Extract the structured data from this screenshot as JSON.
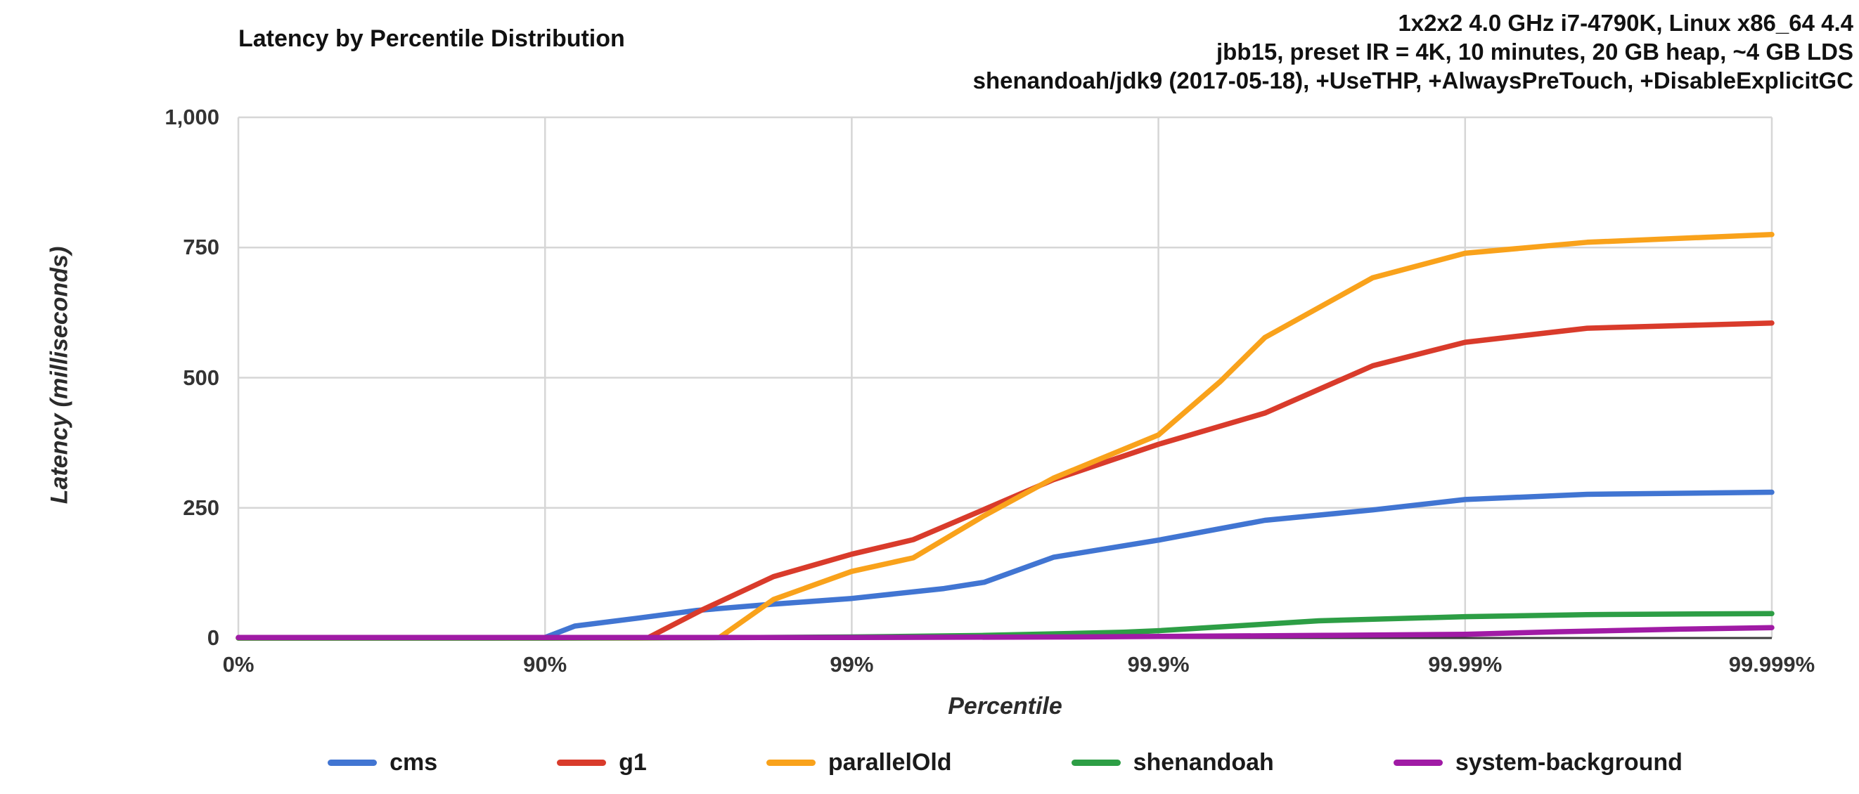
{
  "title": "Latency by Percentile Distribution",
  "notes": [
    "1x2x2 4.0 GHz i7-4790K, Linux x86_64 4.4",
    "jbb15, preset IR = 4K, 10 minutes, 20 GB heap, ~4 GB LDS",
    "shenandoah/jdk9 (2017-05-18), +UseTHP, +AlwaysPreTouch, +DisableExplicitGC"
  ],
  "chart_data": {
    "type": "line",
    "title": "Latency by Percentile Distribution",
    "xlabel": "Percentile",
    "ylabel": "Latency (milliseconds)",
    "x_scale": "hdr-percentile-log, position = log10(100/(100-p))",
    "x_ticks": [
      "0%",
      "90%",
      "99%",
      "99.9%",
      "99.99%",
      "99.999%"
    ],
    "y_ticks": [
      {
        "value": 0,
        "label": "0"
      },
      {
        "value": 250,
        "label": "250"
      },
      {
        "value": 500,
        "label": "500"
      },
      {
        "value": 750,
        "label": "750"
      },
      {
        "value": 1000,
        "label": "1,000"
      }
    ],
    "ylim": [
      0,
      1000
    ],
    "grid": true,
    "legend_position": "bottom",
    "colors": {
      "grid": "#d6d6d6",
      "axis": "#3c3c3c",
      "text": "#333333"
    },
    "series": [
      {
        "name": "cms",
        "color": "#4175D2",
        "points": [
          [
            0,
            0
          ],
          [
            50,
            0
          ],
          [
            85,
            0
          ],
          [
            90,
            1
          ],
          [
            92,
            23
          ],
          [
            95,
            38
          ],
          [
            96.8,
            53
          ],
          [
            98.2,
            65
          ],
          [
            99,
            76
          ],
          [
            99.5,
            95
          ],
          [
            99.63,
            107
          ],
          [
            99.78,
            155
          ],
          [
            99.9,
            188
          ],
          [
            99.955,
            226
          ],
          [
            99.98,
            246
          ],
          [
            99.99,
            266
          ],
          [
            99.996,
            276
          ],
          [
            99.999,
            280
          ]
        ]
      },
      {
        "name": "g1",
        "color": "#D93B2B",
        "points": [
          [
            0,
            0
          ],
          [
            50,
            0
          ],
          [
            90,
            0
          ],
          [
            95.4,
            1
          ],
          [
            96.9,
            53
          ],
          [
            98.2,
            118
          ],
          [
            99,
            161
          ],
          [
            99.37,
            189
          ],
          [
            99.63,
            247
          ],
          [
            99.78,
            304
          ],
          [
            99.9,
            372
          ],
          [
            99.955,
            432
          ],
          [
            99.98,
            523
          ],
          [
            99.99,
            568
          ],
          [
            99.996,
            595
          ],
          [
            99.999,
            605
          ]
        ]
      },
      {
        "name": "parallelOld",
        "color": "#F9A21B",
        "points": [
          [
            0,
            0
          ],
          [
            50,
            0
          ],
          [
            95,
            0
          ],
          [
            97.3,
            1
          ],
          [
            98.2,
            74
          ],
          [
            99,
            128
          ],
          [
            99.37,
            154
          ],
          [
            99.63,
            235
          ],
          [
            99.78,
            307
          ],
          [
            99.9,
            390
          ],
          [
            99.937,
            492
          ],
          [
            99.955,
            577
          ],
          [
            99.98,
            692
          ],
          [
            99.99,
            739
          ],
          [
            99.996,
            760
          ],
          [
            99.999,
            775
          ]
        ]
      },
      {
        "name": "shenandoah",
        "color": "#2D9E45",
        "points": [
          [
            0,
            0
          ],
          [
            50,
            0
          ],
          [
            90,
            0
          ],
          [
            98,
            1
          ],
          [
            99,
            2
          ],
          [
            99.5,
            4
          ],
          [
            99.63,
            5
          ],
          [
            99.87,
            11
          ],
          [
            99.9,
            14
          ],
          [
            99.95,
            25
          ],
          [
            99.97,
            33
          ],
          [
            99.99,
            41
          ],
          [
            99.996,
            45
          ],
          [
            99.999,
            47
          ]
        ]
      },
      {
        "name": "system-background",
        "color": "#A01BA5",
        "points": [
          [
            0,
            1
          ],
          [
            50,
            1
          ],
          [
            90,
            1
          ],
          [
            99,
            1
          ],
          [
            99.8,
            2
          ],
          [
            99.9,
            3
          ],
          [
            99.97,
            5
          ],
          [
            99.99,
            7
          ],
          [
            99.995,
            12
          ],
          [
            99.998,
            17
          ],
          [
            99.999,
            20
          ]
        ]
      }
    ]
  }
}
